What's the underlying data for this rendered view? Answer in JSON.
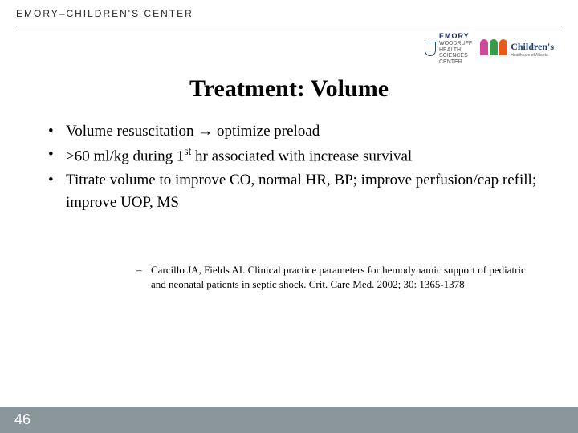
{
  "header": {
    "org": "EMORY–CHILDREN'S CENTER"
  },
  "logos": {
    "emory": {
      "brand": "EMORY",
      "sub1": "WOODRUFF",
      "sub2": "HEALTH",
      "sub3": "SCIENCES",
      "sub4": "CENTER"
    },
    "childrens": {
      "brand": "Children's",
      "sub": "Healthcare of Atlanta"
    }
  },
  "title": "Treatment: Volume",
  "bullets": [
    {
      "pre": "Volume resuscitation ",
      "arrow": "→",
      "post": " optimize preload"
    },
    {
      "pre": ">60 ml/kg during 1",
      "sup": "st",
      "post": " hr associated with increase survival"
    },
    {
      "text": "Titrate volume to improve CO, normal HR, BP; improve perfusion/cap refill; improve UOP, MS"
    }
  ],
  "citation": "Carcillo JA, Fields AI.  Clinical practice parameters for hemodynamic support of pediatric and neonatal patients in septic shock.  Crit. Care Med. 2002; 30: 1365-1378",
  "page": "46",
  "colors": {
    "footer": "#8a959c",
    "text": "#000000"
  }
}
